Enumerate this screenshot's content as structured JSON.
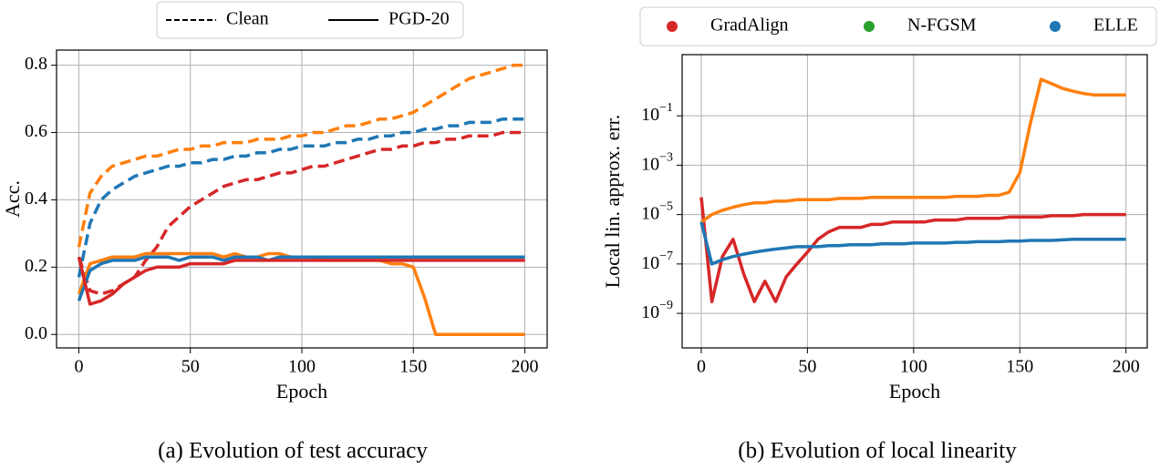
{
  "chart_data": [
    {
      "type": "line",
      "caption": "(a) Evolution of test accuracy",
      "xlabel": "Epoch",
      "ylabel": "Acc.",
      "legend": [
        {
          "label": "Clean",
          "linestyle": "dashed"
        },
        {
          "label": "PGD-20",
          "linestyle": "solid"
        }
      ],
      "legend_position": "top",
      "x": [
        0,
        5,
        10,
        15,
        20,
        25,
        30,
        35,
        40,
        45,
        50,
        55,
        60,
        65,
        70,
        75,
        80,
        85,
        90,
        95,
        100,
        105,
        110,
        115,
        120,
        125,
        130,
        135,
        140,
        145,
        150,
        155,
        160,
        165,
        170,
        175,
        180,
        185,
        190,
        195,
        200
      ],
      "xlim": [
        -10,
        210
      ],
      "xticks": [
        0,
        50,
        100,
        150,
        200
      ],
      "ylim": [
        -0.04,
        0.845
      ],
      "yticks": [
        {
          "value": 0,
          "label": "0.0"
        },
        0.2,
        0.4,
        0.6,
        0.8
      ],
      "grid": true,
      "log_y": false,
      "series": [
        {
          "color": "#ff7f0e",
          "linestyle": "dashed",
          "values": [
            0.26,
            0.42,
            0.47,
            0.5,
            0.51,
            0.52,
            0.53,
            0.53,
            0.54,
            0.55,
            0.55,
            0.56,
            0.56,
            0.57,
            0.57,
            0.57,
            0.58,
            0.58,
            0.58,
            0.59,
            0.59,
            0.6,
            0.6,
            0.61,
            0.62,
            0.62,
            0.63,
            0.64,
            0.64,
            0.65,
            0.66,
            0.68,
            0.7,
            0.72,
            0.74,
            0.76,
            0.77,
            0.78,
            0.79,
            0.8,
            0.8
          ]
        },
        {
          "color": "#1f77b4",
          "linestyle": "dashed",
          "values": [
            0.17,
            0.33,
            0.4,
            0.43,
            0.45,
            0.47,
            0.48,
            0.49,
            0.5,
            0.5,
            0.51,
            0.51,
            0.52,
            0.52,
            0.53,
            0.53,
            0.54,
            0.54,
            0.55,
            0.55,
            0.56,
            0.56,
            0.56,
            0.57,
            0.57,
            0.58,
            0.58,
            0.59,
            0.59,
            0.6,
            0.6,
            0.61,
            0.61,
            0.62,
            0.62,
            0.63,
            0.63,
            0.63,
            0.64,
            0.64,
            0.64
          ]
        },
        {
          "color": "#d62728",
          "linestyle": "dashed",
          "values": [
            0.23,
            0.13,
            0.12,
            0.13,
            0.15,
            0.17,
            0.22,
            0.26,
            0.32,
            0.35,
            0.38,
            0.4,
            0.42,
            0.44,
            0.45,
            0.46,
            0.46,
            0.47,
            0.48,
            0.48,
            0.49,
            0.5,
            0.5,
            0.51,
            0.52,
            0.53,
            0.54,
            0.55,
            0.55,
            0.56,
            0.56,
            0.57,
            0.57,
            0.58,
            0.58,
            0.59,
            0.59,
            0.59,
            0.6,
            0.6,
            0.6
          ]
        },
        {
          "color": "#ff7f0e",
          "linestyle": "solid",
          "values": [
            0.12,
            0.21,
            0.22,
            0.23,
            0.23,
            0.23,
            0.24,
            0.24,
            0.24,
            0.24,
            0.24,
            0.24,
            0.24,
            0.23,
            0.24,
            0.23,
            0.23,
            0.24,
            0.24,
            0.23,
            0.23,
            0.23,
            0.22,
            0.22,
            0.22,
            0.22,
            0.22,
            0.22,
            0.21,
            0.21,
            0.2,
            0.11,
            0,
            0,
            0,
            0,
            0,
            0,
            0,
            0,
            0
          ]
        },
        {
          "color": "#1f77b4",
          "linestyle": "solid",
          "values": [
            0.1,
            0.19,
            0.21,
            0.22,
            0.22,
            0.22,
            0.23,
            0.23,
            0.23,
            0.22,
            0.23,
            0.23,
            0.23,
            0.22,
            0.23,
            0.23,
            0.23,
            0.22,
            0.23,
            0.23,
            0.23,
            0.23,
            0.23,
            0.23,
            0.23,
            0.23,
            0.23,
            0.23,
            0.23,
            0.23,
            0.23,
            0.23,
            0.23,
            0.23,
            0.23,
            0.23,
            0.23,
            0.23,
            0.23,
            0.23,
            0.23
          ]
        },
        {
          "color": "#d62728",
          "linestyle": "solid",
          "values": [
            0.23,
            0.09,
            0.1,
            0.12,
            0.15,
            0.17,
            0.19,
            0.2,
            0.2,
            0.2,
            0.21,
            0.21,
            0.21,
            0.21,
            0.22,
            0.22,
            0.22,
            0.22,
            0.22,
            0.22,
            0.22,
            0.22,
            0.22,
            0.22,
            0.22,
            0.22,
            0.22,
            0.22,
            0.22,
            0.22,
            0.22,
            0.22,
            0.22,
            0.22,
            0.22,
            0.22,
            0.22,
            0.22,
            0.22,
            0.22,
            0.22
          ]
        }
      ]
    },
    {
      "type": "line",
      "caption": "(b) Evolution of local linearity",
      "xlabel": "Epoch",
      "ylabel": "Local lin. approx. err.",
      "legend_position": "top",
      "x": [
        0,
        5,
        10,
        15,
        20,
        25,
        30,
        35,
        40,
        45,
        50,
        55,
        60,
        65,
        70,
        75,
        80,
        85,
        90,
        95,
        100,
        105,
        110,
        115,
        120,
        125,
        130,
        135,
        140,
        145,
        150,
        155,
        160,
        165,
        170,
        175,
        180,
        185,
        190,
        195,
        200
      ],
      "xlim": [
        -9,
        210
      ],
      "xticks": [
        0,
        50,
        100,
        150,
        200
      ],
      "ylim": [
        4e-11,
        30
      ],
      "yticks": [
        {
          "value": 1e-09,
          "label": "10",
          "sup": "−9"
        },
        {
          "value": 1e-07,
          "label": "10",
          "sup": "−7"
        },
        {
          "value": 1e-05,
          "label": "10",
          "sup": "−5"
        },
        {
          "value": 0.001,
          "label": "10",
          "sup": "−3"
        },
        {
          "value": 0.1,
          "label": "10",
          "sup": "−1"
        }
      ],
      "grid": true,
      "log_y": true,
      "series": [
        {
          "name": "GradAlign",
          "color": "#d62728",
          "legend_color": "#d62728",
          "values": [
            5e-05,
            3e-09,
            2e-07,
            1e-06,
            4e-08,
            3e-09,
            2e-08,
            3e-09,
            3e-08,
            1e-07,
            3e-07,
            1e-06,
            2e-06,
            3e-06,
            3e-06,
            3e-06,
            4e-06,
            4e-06,
            5e-06,
            5e-06,
            5e-06,
            5e-06,
            6e-06,
            6e-06,
            6e-06,
            7e-06,
            7e-06,
            7e-06,
            7e-06,
            8e-06,
            8e-06,
            8e-06,
            8e-06,
            9e-06,
            9e-06,
            9e-06,
            1e-05,
            1e-05,
            1e-05,
            1e-05,
            1e-05
          ]
        },
        {
          "name": "N-FGSM",
          "color": "#ff7f0e",
          "legend_color": "#2ca02c",
          "values": [
            5e-06,
            1e-05,
            1.5e-05,
            2e-05,
            2.5e-05,
            3e-05,
            3e-05,
            3.5e-05,
            3.5e-05,
            4e-05,
            4e-05,
            4e-05,
            4e-05,
            4.5e-05,
            4.5e-05,
            4.5e-05,
            5e-05,
            5e-05,
            5e-05,
            5e-05,
            5e-05,
            5e-05,
            5e-05,
            5e-05,
            5.5e-05,
            5.5e-05,
            5.5e-05,
            6e-05,
            6e-05,
            8e-05,
            0.0005,
            0.05,
            3,
            2,
            1.3,
            1,
            0.8,
            0.7,
            0.7,
            0.7,
            0.7
          ]
        },
        {
          "name": "ELLE",
          "color": "#1f77b4",
          "legend_color": "#1f77b4",
          "values": [
            5e-06,
            1e-07,
            1.5e-07,
            2e-07,
            2.5e-07,
            3e-07,
            3.5e-07,
            4e-07,
            4.5e-07,
            5e-07,
            5e-07,
            5e-07,
            5.5e-07,
            5.5e-07,
            6e-07,
            6e-07,
            6e-07,
            6.5e-07,
            6.5e-07,
            6.5e-07,
            7e-07,
            7e-07,
            7e-07,
            7e-07,
            7.5e-07,
            7.5e-07,
            8e-07,
            8e-07,
            8e-07,
            8.5e-07,
            8.5e-07,
            9e-07,
            9e-07,
            9e-07,
            9.5e-07,
            1e-06,
            1e-06,
            1e-06,
            1e-06,
            1e-06,
            1e-06
          ]
        }
      ]
    }
  ]
}
